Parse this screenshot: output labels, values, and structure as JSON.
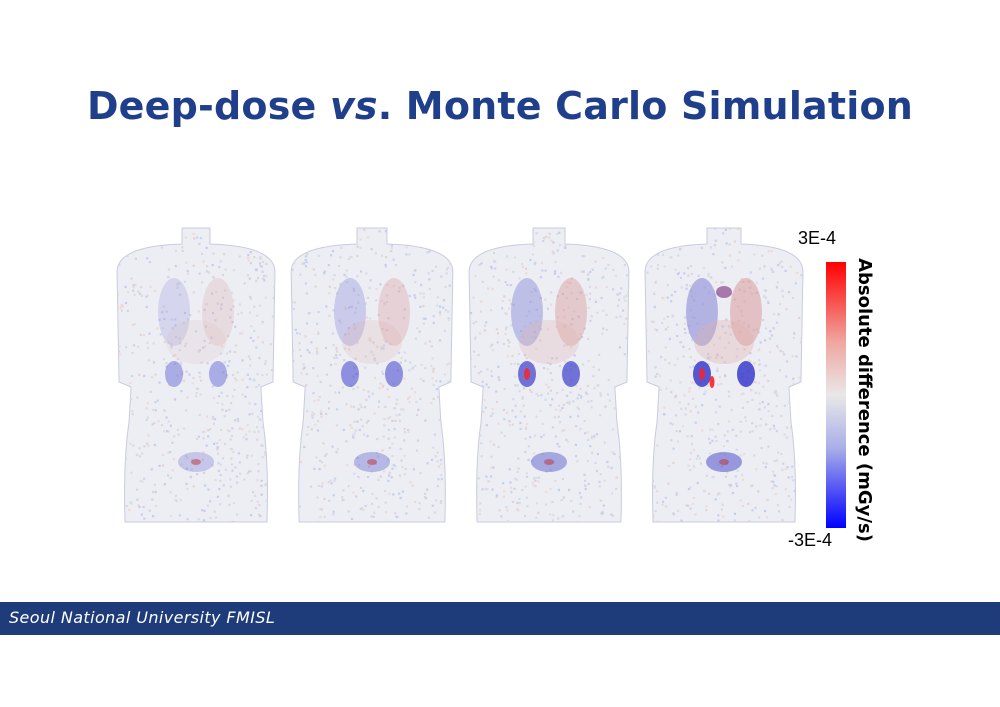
{
  "slide": {
    "title_part1": "Deep-dose ",
    "title_em": "vs",
    "title_part2": ". Monte Carlo Simulation"
  },
  "colorbar": {
    "max_label": "3E-4",
    "min_label": "-3E-4",
    "axis_label": "Absolute difference (mGy/s)",
    "colors": [
      "#ff0000",
      "#e8e8e8",
      "#0000ff"
    ]
  },
  "figure": {
    "panels": [
      "dose-difference-map-1",
      "dose-difference-map-2",
      "dose-difference-map-3",
      "dose-difference-map-4"
    ]
  },
  "footer": {
    "text": "Seoul National University FMISL",
    "color": "#1f3c7a"
  }
}
